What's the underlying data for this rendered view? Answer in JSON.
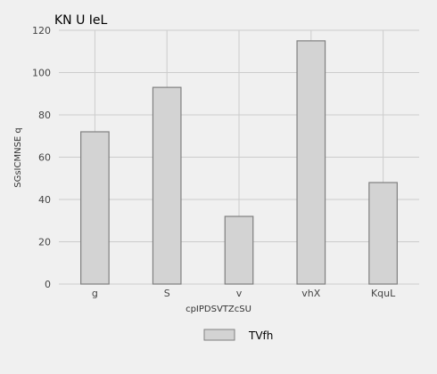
{
  "chart_data": {
    "type": "bar",
    "title": "KN U IeL",
    "xlabel": "cpIPDSVTZcSU",
    "ylabel": "SGsICMNSE q",
    "categories": [
      "g",
      "S",
      "v",
      "vhX",
      "KquL"
    ],
    "series": [
      {
        "name": "TVfh",
        "values": [
          72,
          93,
          32,
          115,
          48
        ]
      }
    ],
    "ylim": [
      0,
      120
    ],
    "yticks": [
      0,
      20,
      40,
      60,
      80,
      100,
      120
    ],
    "grid": true,
    "legend_position": "bottom-center",
    "colors": {
      "background": "#f0f0f0",
      "bar_fill": "#d3d3d3",
      "bar_stroke": "#808080",
      "grid": "#cccccc"
    }
  }
}
